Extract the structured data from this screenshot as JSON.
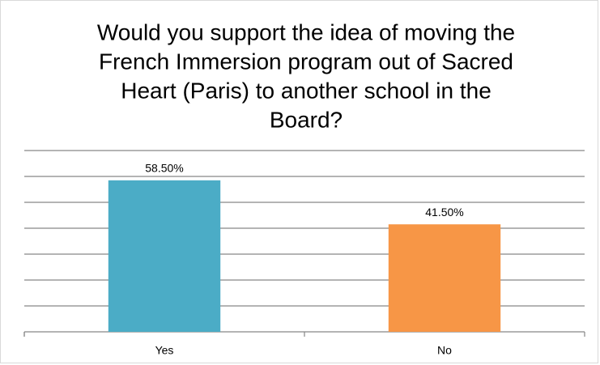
{
  "chart_data": {
    "type": "bar",
    "title": [
      "Would you support the idea of moving the",
      "French Immersion program out of Sacred",
      "Heart (Paris) to another school in the",
      "Board?"
    ],
    "categories": [
      "Yes",
      "No"
    ],
    "values": [
      58.5,
      41.5
    ],
    "value_labels": [
      "58.50%",
      "41.50%"
    ],
    "colors": [
      "#4bacc6",
      "#f79646"
    ],
    "ylim": [
      0,
      70
    ],
    "yticks": [
      0,
      10,
      20,
      30,
      40,
      50,
      60,
      70
    ],
    "grid": true
  }
}
